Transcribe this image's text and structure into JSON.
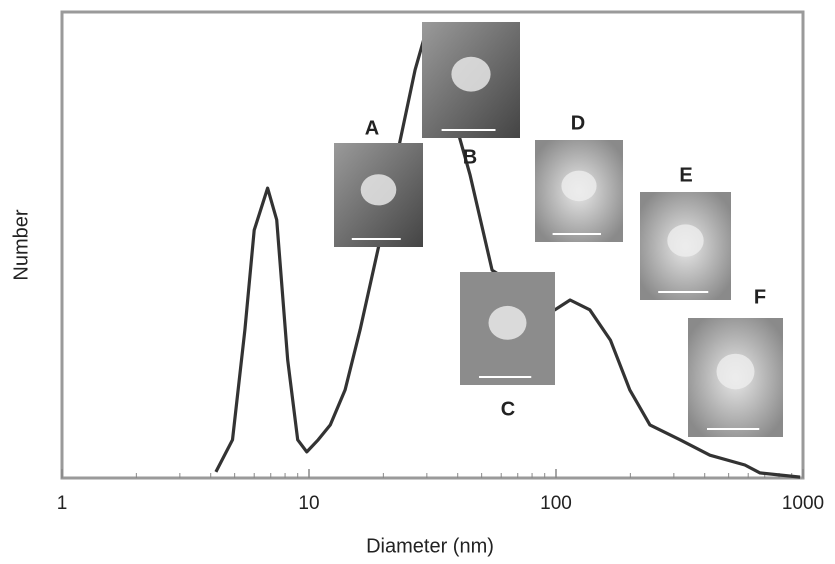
{
  "chart_data": {
    "type": "line",
    "xscale": "log",
    "xlabel": "Diameter (nm)",
    "ylabel": "Number",
    "xlim": [
      1,
      1000
    ],
    "ylim": [
      0,
      100
    ],
    "xticks": [
      1,
      10,
      100,
      1000
    ],
    "xminorticks": [
      2,
      3,
      4,
      5,
      6,
      7,
      8,
      9,
      20,
      30,
      40,
      50,
      60,
      70,
      80,
      90,
      200,
      300,
      400,
      500,
      600,
      700,
      800,
      900
    ],
    "annotations": [
      "A",
      "B",
      "C",
      "D",
      "E",
      "F"
    ],
    "series": [
      {
        "color": "#333333",
        "x": [
          4.2,
          4.9,
          5.5,
          6.0,
          6.8,
          7.4,
          8.2,
          9.0,
          9.8,
          10.9,
          12.2,
          14.0,
          16.1,
          19.4,
          23.4,
          26.9,
          30.3,
          44.9,
          55.1,
          99,
          114,
          137,
          166,
          199,
          240,
          318,
          420,
          582,
          670,
          973
        ],
        "values": [
          1.3,
          8.2,
          31.8,
          53.2,
          62.2,
          55.4,
          25.3,
          8.2,
          5.6,
          8.2,
          11.4,
          18.9,
          31.8,
          51.1,
          72.5,
          87.6,
          97.2,
          65.0,
          44.6,
          36.1,
          38.2,
          36.1,
          29.6,
          18.9,
          11.4,
          8.2,
          4.9,
          2.8,
          1.1,
          0.2
        ]
      }
    ]
  }
}
